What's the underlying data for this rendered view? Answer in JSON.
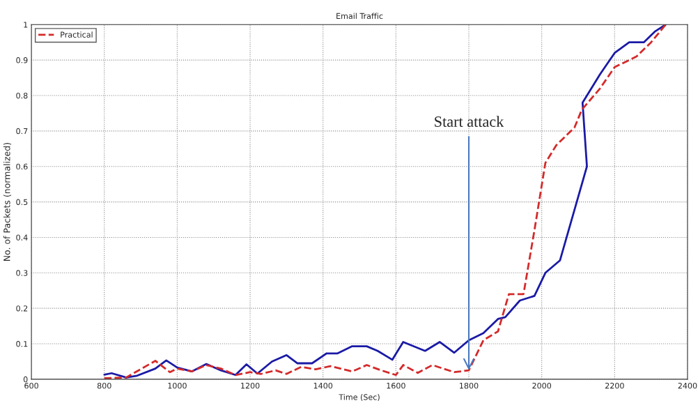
{
  "chart_data": {
    "type": "line",
    "title": "Email Traffic",
    "xlabel": "Time (Sec)",
    "ylabel": "No. of Packets (normalized)",
    "xlim": [
      600,
      2400
    ],
    "xticks": [
      600,
      800,
      1000,
      1200,
      1400,
      1600,
      1800,
      2000,
      2200,
      2400
    ],
    "ylim": [
      0,
      1
    ],
    "yticks": [
      0,
      0.1,
      0.2,
      0.3,
      0.4,
      0.5,
      0.6,
      0.7,
      0.8,
      0.9,
      1
    ],
    "grid": true,
    "legend": "top left",
    "series": [
      {
        "color": "#1a1aa6",
        "line_style": "solid",
        "x": [
          800,
          820,
          860,
          890,
          940,
          970,
          1000,
          1040,
          1080,
          1120,
          1160,
          1190,
          1220,
          1260,
          1300,
          1330,
          1370,
          1410,
          1440,
          1480,
          1520,
          1550,
          1590,
          1620,
          1680,
          1720,
          1760,
          1800,
          1840,
          1880,
          1900,
          1940,
          1980,
          2010,
          2050,
          2124,
          2112,
          2160,
          2200,
          2240,
          2280,
          2310,
          2340
        ],
        "values": [
          0.013,
          0.017,
          0.005,
          0.01,
          0.03,
          0.053,
          0.033,
          0.022,
          0.043,
          0.025,
          0.012,
          0.042,
          0.016,
          0.05,
          0.068,
          0.045,
          0.045,
          0.073,
          0.073,
          0.093,
          0.093,
          0.08,
          0.055,
          0.105,
          0.08,
          0.105,
          0.075,
          0.11,
          0.13,
          0.17,
          0.175,
          0.222,
          0.235,
          0.3,
          0.335,
          0.6,
          0.78,
          0.86,
          0.92,
          0.95,
          0.95,
          0.98,
          1.0
        ]
      },
      {
        "name": "Practical",
        "color": "#d42a2a",
        "line_style": "dashed",
        "x": [
          800,
          860,
          940,
          980,
          1000,
          1040,
          1080,
          1120,
          1160,
          1200,
          1230,
          1270,
          1300,
          1340,
          1380,
          1420,
          1480,
          1520,
          1560,
          1600,
          1620,
          1660,
          1700,
          1760,
          1800,
          1840,
          1880,
          1910,
          1950,
          1980,
          2010,
          2040,
          2090,
          2110,
          2160,
          2200,
          2260,
          2300,
          2340
        ],
        "values": [
          0.003,
          0.005,
          0.052,
          0.02,
          0.03,
          0.022,
          0.04,
          0.03,
          0.012,
          0.02,
          0.015,
          0.025,
          0.015,
          0.035,
          0.028,
          0.037,
          0.022,
          0.04,
          0.025,
          0.012,
          0.04,
          0.018,
          0.04,
          0.02,
          0.025,
          0.11,
          0.135,
          0.24,
          0.24,
          0.42,
          0.61,
          0.66,
          0.71,
          0.76,
          0.82,
          0.88,
          0.91,
          0.95,
          1.0
        ]
      }
    ],
    "annotations": [
      {
        "text": "Start attack",
        "x": 1800,
        "y": 0.02
      }
    ]
  }
}
